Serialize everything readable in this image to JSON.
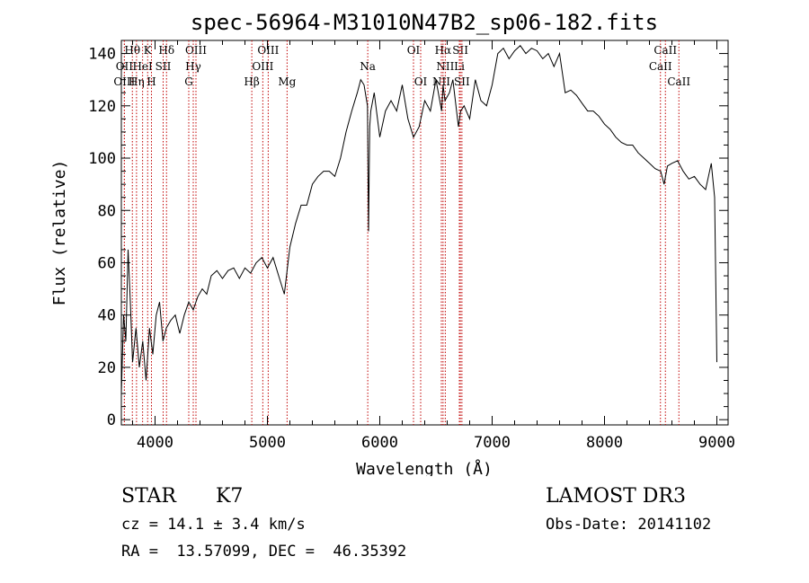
{
  "chart_data": {
    "type": "line",
    "title": "spec-56964-M31010N47B2_sp06-182.fits",
    "xlabel": "Wavelength (Å)",
    "ylabel": "Flux (relative)",
    "xlim": [
      3700,
      9100
    ],
    "ylim": [
      -2,
      145
    ],
    "xticks": [
      4000,
      5000,
      6000,
      7000,
      8000,
      9000
    ],
    "yticks": [
      0,
      20,
      40,
      60,
      80,
      100,
      120,
      140
    ],
    "grid": false,
    "series": [
      {
        "x": [
          3700,
          3720,
          3740,
          3760,
          3780,
          3800,
          3830,
          3860,
          3890,
          3920,
          3950,
          3980,
          4010,
          4040,
          4070,
          4100,
          4140,
          4180,
          4220,
          4260,
          4300,
          4340,
          4380,
          4420,
          4460,
          4500,
          4550,
          4600,
          4650,
          4700,
          4750,
          4800,
          4850,
          4900,
          4950,
          5000,
          5050,
          5100,
          5150,
          5200,
          5250,
          5300,
          5350,
          5400,
          5450,
          5500,
          5550,
          5600,
          5650,
          5700,
          5750,
          5800,
          5830,
          5860,
          5890,
          5900,
          5910,
          5920,
          5950,
          6000,
          6050,
          6100,
          6150,
          6200,
          6250,
          6300,
          6350,
          6400,
          6450,
          6500,
          6550,
          6563,
          6580,
          6620,
          6650,
          6700,
          6720,
          6750,
          6800,
          6850,
          6900,
          6950,
          7000,
          7050,
          7100,
          7150,
          7200,
          7250,
          7300,
          7350,
          7400,
          7450,
          7500,
          7550,
          7600,
          7650,
          7700,
          7750,
          7800,
          7850,
          7900,
          7950,
          8000,
          8050,
          8100,
          8150,
          8200,
          8250,
          8300,
          8350,
          8400,
          8450,
          8500,
          8530,
          8560,
          8600,
          8650,
          8700,
          8750,
          8800,
          8850,
          8900,
          8950,
          8980,
          9000
        ],
        "values": [
          10,
          40,
          30,
          65,
          45,
          22,
          35,
          20,
          30,
          15,
          35,
          25,
          40,
          45,
          30,
          35,
          38,
          40,
          33,
          40,
          45,
          42,
          47,
          50,
          48,
          55,
          57,
          54,
          57,
          58,
          54,
          58,
          56,
          60,
          62,
          58,
          62,
          55,
          48,
          66,
          75,
          82,
          82,
          90,
          93,
          95,
          95,
          93,
          100,
          110,
          118,
          125,
          130,
          128,
          120,
          72,
          112,
          118,
          125,
          108,
          118,
          122,
          118,
          128,
          115,
          108,
          112,
          122,
          118,
          130,
          118,
          128,
          122,
          125,
          130,
          112,
          118,
          120,
          115,
          130,
          122,
          120,
          128,
          140,
          142,
          138,
          141,
          143,
          140,
          142,
          141,
          138,
          140,
          135,
          140,
          125,
          126,
          124,
          121,
          118,
          118,
          116,
          113,
          111,
          108,
          106,
          105,
          105,
          102,
          100,
          98,
          96,
          95,
          90,
          97,
          98,
          99,
          95,
          92,
          93,
          90,
          88,
          98,
          85,
          22
        ]
      }
    ],
    "line_markers": [
      {
        "label": "Hθ",
        "x": 3798,
        "row": 1
      },
      {
        "label": "K",
        "x": 3934,
        "row": 1
      },
      {
        "label": "Hδ",
        "x": 4102,
        "row": 1
      },
      {
        "label": "OIII",
        "x": 4364,
        "row": 1
      },
      {
        "label": "OIII",
        "x": 5007,
        "row": 1
      },
      {
        "label": "OI",
        "x": 6300,
        "row": 1
      },
      {
        "label": "Hα",
        "x": 6563,
        "row": 1
      },
      {
        "label": "SII",
        "x": 6717,
        "row": 1
      },
      {
        "label": "CaII",
        "x": 8542,
        "row": 1
      },
      {
        "label": "OII",
        "x": 3727,
        "row": 2
      },
      {
        "label": "HeI",
        "x": 3889,
        "row": 2
      },
      {
        "label": "SII",
        "x": 4072,
        "row": 2
      },
      {
        "label": "Hγ",
        "x": 4340,
        "row": 2
      },
      {
        "label": "OIII",
        "x": 4959,
        "row": 2
      },
      {
        "label": "Na",
        "x": 5893,
        "row": 2
      },
      {
        "label": "NII",
        "x": 6583,
        "row": 2
      },
      {
        "label": "Li",
        "x": 6708,
        "row": 2
      },
      {
        "label": "CaII",
        "x": 8498,
        "row": 2
      },
      {
        "label": "OIII",
        "x": 3727,
        "row": 3
      },
      {
        "label": "Hη",
        "x": 3835,
        "row": 3
      },
      {
        "label": "H",
        "x": 3968,
        "row": 3
      },
      {
        "label": "G",
        "x": 4300,
        "row": 3
      },
      {
        "label": "Hβ",
        "x": 4861,
        "row": 3
      },
      {
        "label": "Mg",
        "x": 5175,
        "row": 3
      },
      {
        "label": "OI",
        "x": 6364,
        "row": 3
      },
      {
        "label": "NII",
        "x": 6548,
        "row": 3
      },
      {
        "label": "SII",
        "x": 6731,
        "row": 3
      },
      {
        "label": "CaII",
        "x": 8662,
        "row": 3
      }
    ]
  },
  "info": {
    "object_class": "STAR",
    "subclass": "K7",
    "survey": "LAMOST DR3",
    "cz": "cz = 14.1 ± 3.4 km/s",
    "obs_date": "Obs-Date: 20141102",
    "coords": "RA =  13.57099, DEC =  46.35392"
  }
}
